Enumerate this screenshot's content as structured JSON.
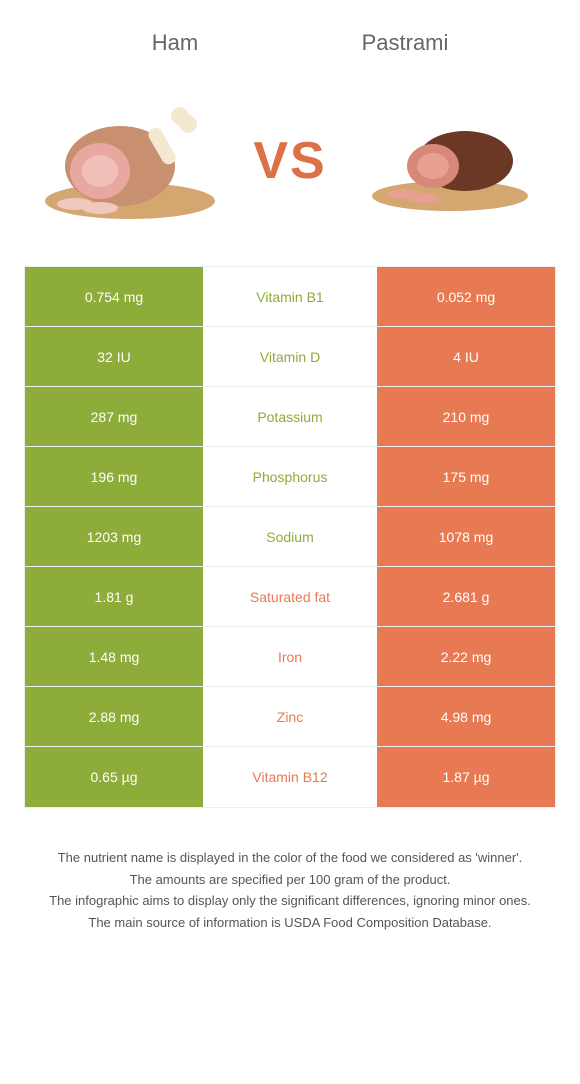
{
  "food_left": {
    "title": "Ham"
  },
  "food_right": {
    "title": "Pastrami"
  },
  "vs": "VS",
  "table": {
    "rows": [
      {
        "left": "0.754 mg",
        "label": "Vitamin B1",
        "right": "0.052 mg",
        "winner": "left"
      },
      {
        "left": "32 IU",
        "label": "Vitamin D",
        "right": "4 IU",
        "winner": "left"
      },
      {
        "left": "287 mg",
        "label": "Potassium",
        "right": "210 mg",
        "winner": "left"
      },
      {
        "left": "196 mg",
        "label": "Phosphorus",
        "right": "175 mg",
        "winner": "left"
      },
      {
        "left": "1203 mg",
        "label": "Sodium",
        "right": "1078 mg",
        "winner": "left"
      },
      {
        "left": "1.81 g",
        "label": "Saturated fat",
        "right": "2.681 g",
        "winner": "right"
      },
      {
        "left": "1.48 mg",
        "label": "Iron",
        "right": "2.22 mg",
        "winner": "right"
      },
      {
        "left": "2.88 mg",
        "label": "Zinc",
        "right": "4.98 mg",
        "winner": "right"
      },
      {
        "left": "0.65 µg",
        "label": "Vitamin B12",
        "right": "1.87 µg",
        "winner": "right"
      }
    ]
  },
  "colors": {
    "left_bg": "#8dac3a",
    "right_bg": "#e77a53",
    "left_text": "#8dac3a",
    "right_text": "#e77a53"
  },
  "footer": {
    "line1": "The nutrient name is displayed in the color of the food we considered as 'winner'.",
    "line2": "The amounts are specified per 100 gram of the product.",
    "line3": "The infographic aims to display only the significant differences, ignoring minor ones.",
    "line4": "The main source of information is USDA Food Composition Database."
  }
}
